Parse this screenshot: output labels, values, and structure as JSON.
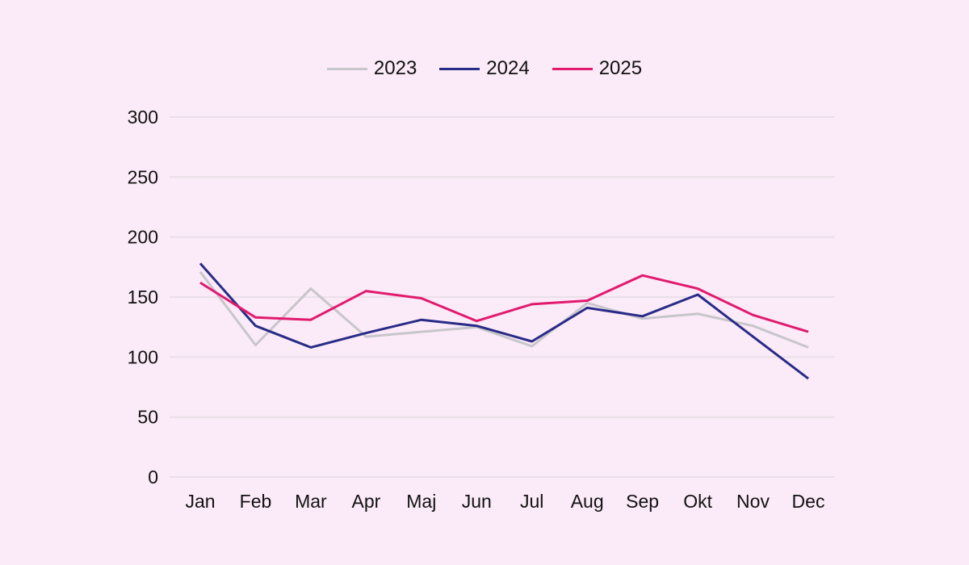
{
  "chart_data": {
    "type": "line",
    "title": "",
    "xlabel": "",
    "ylabel": "",
    "categories": [
      "Jan",
      "Feb",
      "Mar",
      "Apr",
      "Maj",
      "Jun",
      "Jul",
      "Aug",
      "Sep",
      "Okt",
      "Nov",
      "Dec"
    ],
    "series": [
      {
        "name": "2023",
        "color": "#c7c6cb",
        "values": [
          171,
          110,
          157,
          117,
          121,
          125,
          109,
          145,
          132,
          136,
          126,
          108
        ]
      },
      {
        "name": "2024",
        "color": "#282b87",
        "values": [
          178,
          126,
          108,
          120,
          131,
          126,
          113,
          141,
          134,
          152,
          117,
          82
        ]
      },
      {
        "name": "2025",
        "color": "#e11a6e",
        "values": [
          162,
          133,
          131,
          155,
          149,
          130,
          144,
          147,
          168,
          157,
          135,
          121
        ]
      }
    ],
    "ylim": [
      0,
      300
    ],
    "yticks": [
      0,
      50,
      100,
      150,
      200,
      250,
      300
    ],
    "grid": true,
    "legend_position": "top"
  },
  "colors": {
    "background": "#fbeaf7",
    "gridline": "#e9dfe8",
    "text": "#111111"
  }
}
